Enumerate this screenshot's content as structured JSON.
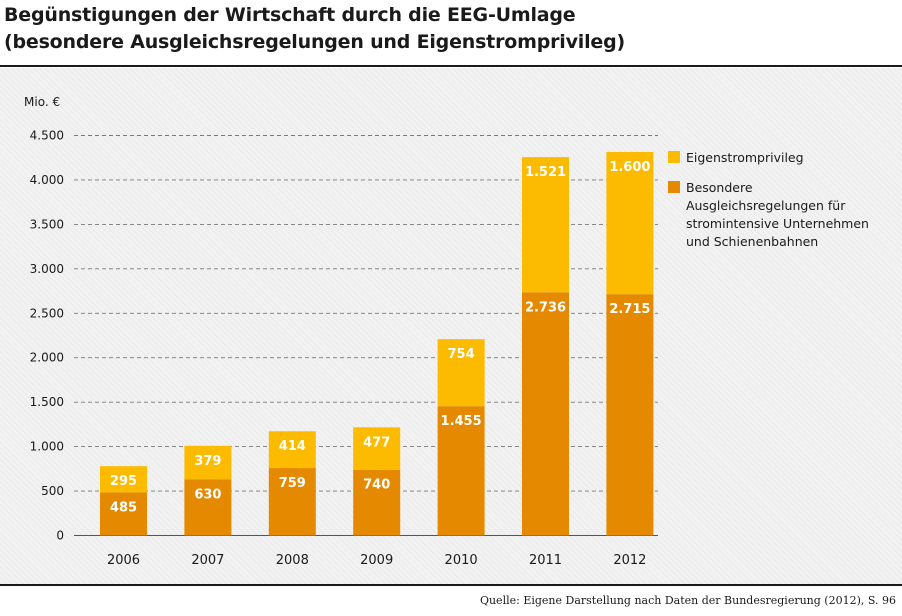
{
  "chart_data": {
    "type": "bar",
    "stacked": true,
    "title": "Begünstigungen der Wirtschaft durch die EEG-Umlage",
    "subtitle": "(besondere Ausgleichsregelungen und Eigenstromprivileg)",
    "ylabel": "Mio. €",
    "xlabel": "",
    "ylim": [
      0,
      4500
    ],
    "yticks": [
      0,
      500,
      1000,
      1500,
      2000,
      2500,
      3000,
      3500,
      4000,
      4500
    ],
    "ytick_labels": [
      "0",
      "500",
      "1.000",
      "1.500",
      "2.000",
      "2.500",
      "3.000",
      "3.500",
      "4.000",
      "4.500"
    ],
    "grid": true,
    "legend_position": "right",
    "categories": [
      "2006",
      "2007",
      "2008",
      "2009",
      "2010",
      "2011",
      "2012"
    ],
    "series": [
      {
        "name": "Besondere Ausgleichsregelungen für stromintensive Unternehmen und Schienenbahnen",
        "legend_lines": [
          "Besondere",
          "Ausgleichsregelungen für",
          "stromintensive Unternehmen",
          "und Schienenbahnen"
        ],
        "color": "#e58a00",
        "values": [
          485,
          630,
          759,
          740,
          1455,
          2736,
          2715
        ],
        "labels": [
          "485",
          "630",
          "759",
          "740",
          "1.455",
          "2.736",
          "2.715"
        ]
      },
      {
        "name": "Eigenstromprivileg",
        "legend_lines": [
          "Eigenstromprivileg"
        ],
        "color": "#fdbb00",
        "values": [
          295,
          379,
          414,
          477,
          754,
          1521,
          1600
        ],
        "labels": [
          "295",
          "379",
          "414",
          "477",
          "754",
          "1.521",
          "1.600"
        ]
      }
    ]
  },
  "source": "Quelle: Eigene Darstellung nach Daten der Bundesregierung (2012), S. 96"
}
